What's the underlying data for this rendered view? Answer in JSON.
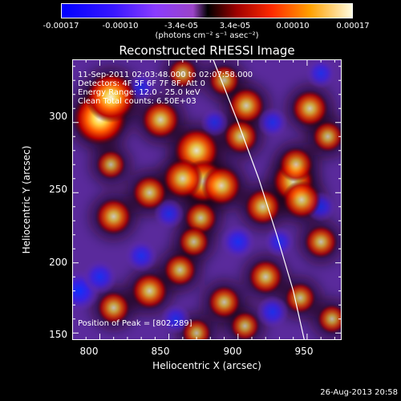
{
  "colorbar": {
    "ticks": [
      "-0.00017",
      "-0.00010",
      "-3.4e-05",
      "3.4e-05",
      "0.00010",
      "0.00017"
    ],
    "unit": "(photons cm⁻² s⁻¹ asec⁻²)"
  },
  "chart_data": {
    "type": "heatmap",
    "title": "Reconstructed RHESSI Image",
    "xlabel": "Heliocentric X (arcsec)",
    "ylabel": "Heliocentric Y (arcsec)",
    "xlim": [
      780,
      975
    ],
    "ylim": [
      145,
      345
    ],
    "xticks": [
      "800",
      "850",
      "900",
      "950"
    ],
    "yticks": [
      "150",
      "200",
      "250",
      "300"
    ],
    "colorbar_range": [
      -0.00017,
      0.00017
    ],
    "peak_position": [
      802,
      289
    ],
    "hot_spots": [
      {
        "x": 800,
        "y": 303,
        "level": 1.0
      },
      {
        "x": 808,
        "y": 318,
        "level": 0.9
      },
      {
        "x": 870,
        "y": 280,
        "level": 0.75
      },
      {
        "x": 875,
        "y": 258,
        "level": 0.7
      },
      {
        "x": 860,
        "y": 260,
        "level": 0.6
      },
      {
        "x": 888,
        "y": 255,
        "level": 0.6
      },
      {
        "x": 844,
        "y": 302,
        "level": 0.55
      },
      {
        "x": 906,
        "y": 312,
        "level": 0.5
      },
      {
        "x": 902,
        "y": 290,
        "level": 0.45
      },
      {
        "x": 836,
        "y": 250,
        "level": 0.45
      },
      {
        "x": 810,
        "y": 233,
        "level": 0.5
      },
      {
        "x": 873,
        "y": 232,
        "level": 0.4
      },
      {
        "x": 918,
        "y": 240,
        "level": 0.5
      },
      {
        "x": 940,
        "y": 258,
        "level": 0.65
      },
      {
        "x": 946,
        "y": 245,
        "level": 0.55
      },
      {
        "x": 942,
        "y": 270,
        "level": 0.45
      },
      {
        "x": 952,
        "y": 310,
        "level": 0.5
      },
      {
        "x": 965,
        "y": 290,
        "level": 0.35
      },
      {
        "x": 858,
        "y": 195,
        "level": 0.4
      },
      {
        "x": 868,
        "y": 215,
        "level": 0.35
      },
      {
        "x": 836,
        "y": 180,
        "level": 0.5
      },
      {
        "x": 810,
        "y": 168,
        "level": 0.4
      },
      {
        "x": 890,
        "y": 172,
        "level": 0.4
      },
      {
        "x": 920,
        "y": 190,
        "level": 0.45
      },
      {
        "x": 945,
        "y": 175,
        "level": 0.35
      },
      {
        "x": 960,
        "y": 215,
        "level": 0.4
      },
      {
        "x": 870,
        "y": 150,
        "level": 0.3
      },
      {
        "x": 905,
        "y": 155,
        "level": 0.3
      },
      {
        "x": 968,
        "y": 160,
        "level": 0.3
      },
      {
        "x": 808,
        "y": 270,
        "level": 0.3
      },
      {
        "x": 890,
        "y": 330,
        "level": 0.35
      },
      {
        "x": 860,
        "y": 335,
        "level": 0.3
      }
    ],
    "cold_spots": [
      {
        "x": 785,
        "y": 180,
        "level": 1.0
      },
      {
        "x": 800,
        "y": 190,
        "level": 0.7
      },
      {
        "x": 830,
        "y": 205,
        "level": 0.6
      },
      {
        "x": 850,
        "y": 235,
        "level": 0.5
      },
      {
        "x": 900,
        "y": 215,
        "level": 0.7
      },
      {
        "x": 930,
        "y": 215,
        "level": 0.5
      },
      {
        "x": 925,
        "y": 300,
        "level": 0.5
      },
      {
        "x": 855,
        "y": 160,
        "level": 0.5
      },
      {
        "x": 925,
        "y": 165,
        "level": 0.6
      },
      {
        "x": 960,
        "y": 240,
        "level": 0.5
      },
      {
        "x": 830,
        "y": 325,
        "level": 0.45
      },
      {
        "x": 960,
        "y": 335,
        "level": 0.5
      },
      {
        "x": 883,
        "y": 300,
        "level": 0.4
      }
    ],
    "limb_curve": [
      [
        882,
        345
      ],
      [
        900,
        300
      ],
      [
        915,
        260
      ],
      [
        928,
        220
      ],
      [
        940,
        180
      ],
      [
        948,
        145
      ]
    ]
  },
  "info_overlay": {
    "line1": "11-Sep-2011 02:03:48.000 to 02:07:58.000",
    "line2": "Detectors: 4F 5F 6F 7F 8F, Att 0",
    "line3": "Energy Range: 12.0 - 25.0 keV",
    "line4": "Clean    Total counts: 6.50E+03",
    "peak_label": "Position of Peak = [802,289]"
  },
  "timestamp": "26-Aug-2013 20:58"
}
